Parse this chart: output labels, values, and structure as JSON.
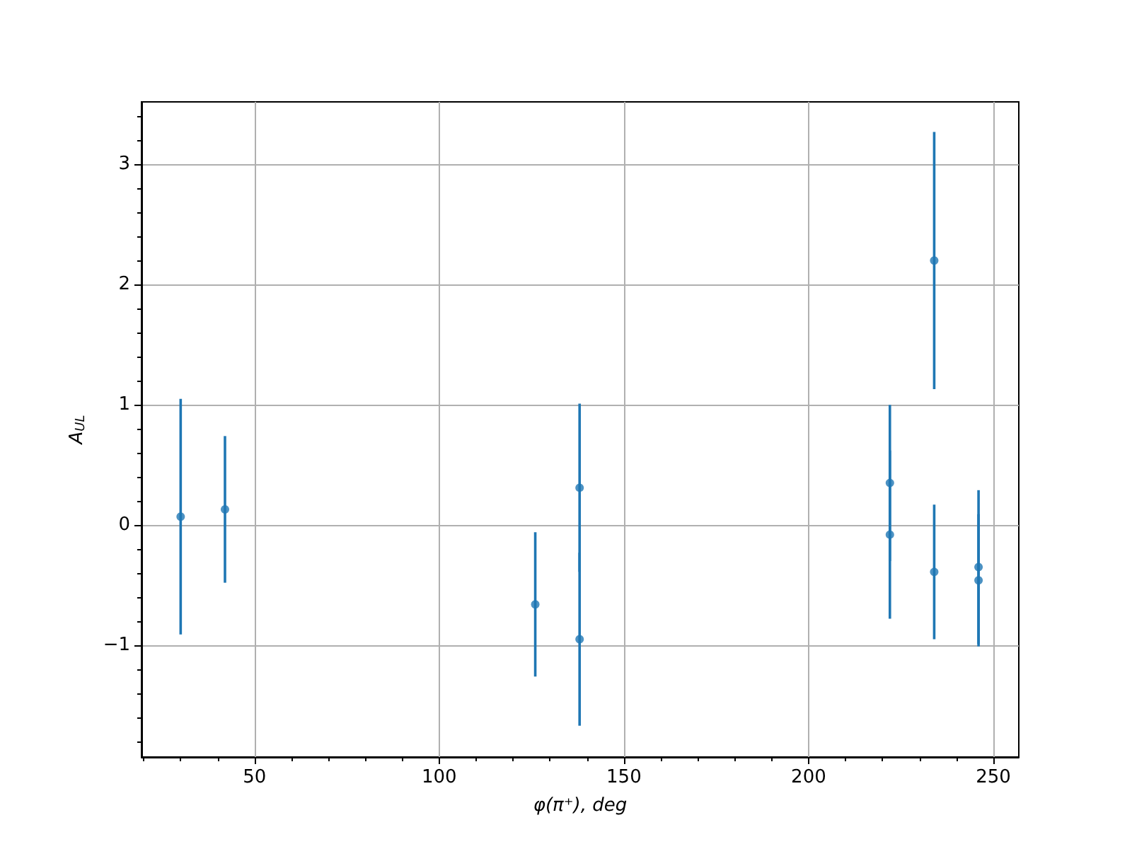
{
  "chart_data": {
    "type": "scatter",
    "xlabel": "φ(π⁺), deg",
    "ylabel": "A$_{UL}$",
    "x": [
      30,
      42,
      126,
      138,
      138,
      222,
      222,
      234,
      234,
      246,
      246
    ],
    "values": [
      0.07,
      0.13,
      -0.66,
      0.31,
      -0.95,
      0.35,
      -0.08,
      2.2,
      -0.39,
      -0.35,
      -0.46
    ],
    "errors": [
      0.98,
      0.61,
      0.6,
      0.7,
      0.72,
      0.65,
      0.7,
      1.07,
      0.56,
      0.64,
      0.55
    ],
    "color": "#1f77b4",
    "xlim": [
      19.4,
      256.9
    ],
    "xticks": [
      50,
      100,
      150,
      200,
      250
    ],
    "ylim": [
      -1.93,
      3.52
    ],
    "yticks": [
      -1,
      0,
      1,
      2,
      3
    ],
    "grid": true,
    "marker": "circle"
  }
}
